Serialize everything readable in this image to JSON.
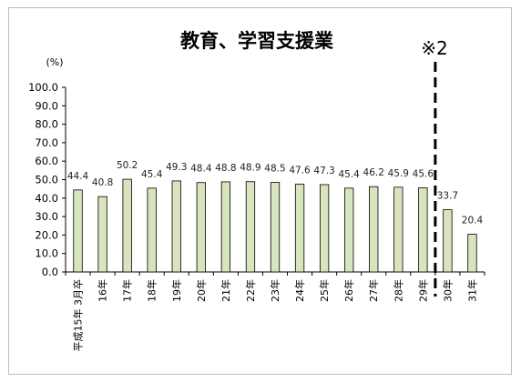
{
  "chart_data": {
    "type": "bar",
    "title": "教育、学習支援業",
    "unit_label": "(%)",
    "annotation": "※2",
    "categories": [
      "平成15年 3月卒",
      "16年",
      "17年",
      "18年",
      "19年",
      "20年",
      "21年",
      "22年",
      "23年",
      "24年",
      "25年",
      "26年",
      "27年",
      "28年",
      "29年",
      "30年",
      "31年"
    ],
    "values": [
      44.4,
      40.8,
      50.2,
      45.4,
      49.3,
      48.4,
      48.8,
      48.9,
      48.5,
      47.6,
      47.3,
      45.4,
      46.2,
      45.9,
      45.6,
      33.7,
      20.4
    ],
    "value_labels": [
      "44.4",
      "40.8",
      "50.2",
      "45.4",
      "49.3",
      "48.4",
      "48.8",
      "48.9",
      "48.5",
      "47.6",
      "47.3",
      "45.4",
      "46.2",
      "45.9",
      "45.6",
      "33.7",
      "20.4"
    ],
    "ylim": [
      0,
      100
    ],
    "yticks": [
      "0.0",
      "10.0",
      "20.0",
      "30.0",
      "40.0",
      "50.0",
      "60.0",
      "70.0",
      "80.0",
      "90.0",
      "100.0"
    ],
    "ytick_values": [
      0,
      10,
      20,
      30,
      40,
      50,
      60,
      70,
      80,
      90,
      100
    ],
    "divider_after_category": "29年",
    "grid": false,
    "bar_fill": "#d7e4bd",
    "bar_stroke": "#000000",
    "divider_color": "#000000"
  }
}
